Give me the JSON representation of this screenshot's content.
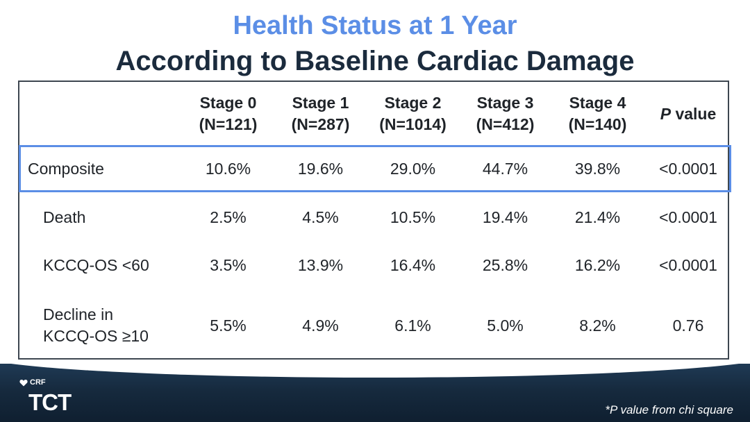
{
  "title": {
    "line1": "Health Status at 1 Year",
    "line2": "According to Baseline Cardiac Damage"
  },
  "table": {
    "headers": [
      {
        "line1": "Stage 0",
        "line2": "(N=121)"
      },
      {
        "line1": "Stage 1",
        "line2": "(N=287)"
      },
      {
        "line1": "Stage 2",
        "line2": "(N=1014)"
      },
      {
        "line1": "Stage 3",
        "line2": "(N=412)"
      },
      {
        "line1": "Stage 4",
        "line2": "(N=140)"
      }
    ],
    "p_header": {
      "italic": "P",
      "rest": " value"
    },
    "rows": [
      {
        "label": "Composite",
        "values": [
          "10.6%",
          "19.6%",
          "29.0%",
          "44.7%",
          "39.8%"
        ],
        "p": "<0.0001"
      },
      {
        "label": "Death",
        "values": [
          "2.5%",
          "4.5%",
          "10.5%",
          "19.4%",
          "21.4%"
        ],
        "p": "<0.0001"
      },
      {
        "label": "KCCQ-OS <60",
        "values": [
          "3.5%",
          "13.9%",
          "16.4%",
          "25.8%",
          "16.2%"
        ],
        "p": "<0.0001"
      },
      {
        "label_line1": "Decline in",
        "label_line2": "KCCQ-OS ≥10",
        "values": [
          "5.5%",
          "4.9%",
          "6.1%",
          "5.0%",
          "8.2%"
        ],
        "p": "0.76"
      }
    ]
  },
  "footer": {
    "crf_label": "CRF",
    "tct_label": "TCT",
    "footnote": "*P value from chi square"
  },
  "colors": {
    "title_accent": "#5b8ee6",
    "title_dark": "#1b2b3d",
    "highlight_border": "#5b8ee6",
    "footer_bg": "#162a3e"
  }
}
